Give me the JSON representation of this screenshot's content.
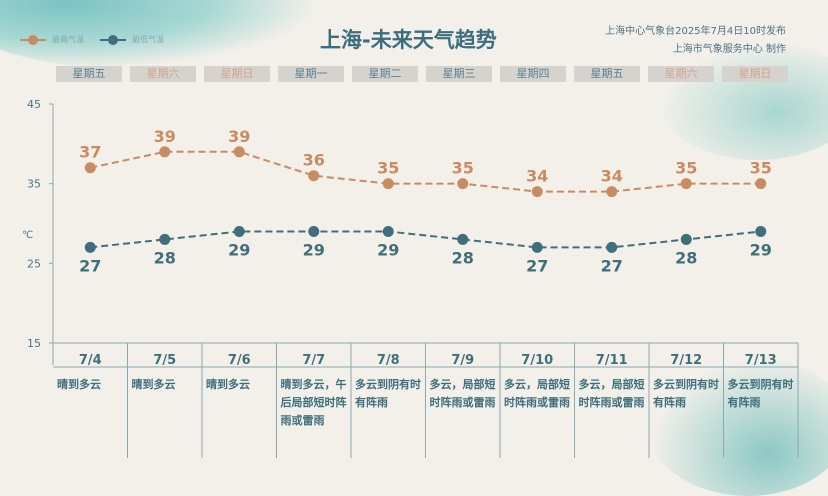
{
  "title": "上海-未来天气趋势",
  "publisher": [
    "上海中心气象台2025年7月4日10时发布",
    "上海市气象服务中心 制作"
  ],
  "legend": {
    "high": "最高气温",
    "low": "最低气温"
  },
  "colors": {
    "high": "#c98b62",
    "low": "#3f6f7d"
  },
  "weekdays": [
    {
      "label": "星期五",
      "weekend": false
    },
    {
      "label": "星期六",
      "weekend": true
    },
    {
      "label": "星期日",
      "weekend": true
    },
    {
      "label": "星期一",
      "weekend": false
    },
    {
      "label": "星期二",
      "weekend": false
    },
    {
      "label": "星期三",
      "weekend": false
    },
    {
      "label": "星期四",
      "weekend": false
    },
    {
      "label": "星期五",
      "weekend": false
    },
    {
      "label": "星期六",
      "weekend": true
    },
    {
      "label": "星期日",
      "weekend": true
    }
  ],
  "chart_data": {
    "type": "line",
    "ylabel": "℃",
    "ylim": [
      15,
      45
    ],
    "yticks": [
      15,
      25,
      35,
      45
    ],
    "categories": [
      "7/4",
      "7/5",
      "7/6",
      "7/7",
      "7/8",
      "7/9",
      "7/10",
      "7/11",
      "7/12",
      "7/13"
    ],
    "weather": [
      "晴到多云",
      "晴到多云",
      "晴到多云",
      "晴到多云，午后局部短时阵雨或雷雨",
      "多云到阴有时有阵雨",
      "多云，局部短时阵雨或雷雨",
      "多云，局部短时阵雨或雷雨",
      "多云，局部短时阵雨或雷雨",
      "多云到阴有时有阵雨",
      "多云到阴有时有阵雨"
    ],
    "series": [
      {
        "name": "最高气温",
        "values": [
          37,
          39,
          39,
          36,
          35,
          35,
          34,
          34,
          35,
          35
        ]
      },
      {
        "name": "最低气温",
        "values": [
          27,
          28,
          29,
          29,
          29,
          28,
          27,
          27,
          28,
          29
        ]
      }
    ]
  }
}
